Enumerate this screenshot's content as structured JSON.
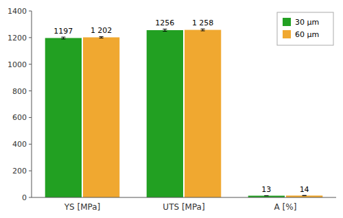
{
  "chart_data": {
    "type": "bar",
    "categories": [
      "YS [MPa]",
      "UTS [MPa]",
      "A [%]"
    ],
    "series": [
      {
        "name": "30 μm",
        "color": "#22a022",
        "values": [
          1197,
          1256,
          13
        ],
        "errors": [
          7,
          8,
          0.4
        ]
      },
      {
        "name": "60 μm",
        "color": "#f0a830",
        "values": [
          1202,
          1258,
          14
        ],
        "errors": [
          5,
          7,
          0.4
        ],
        "value_labels": [
          "1 202",
          "1 258",
          "14"
        ]
      }
    ],
    "ylim": [
      0,
      1400
    ],
    "yticks": [
      0,
      200,
      400,
      600,
      800,
      1000,
      1200,
      1400
    ],
    "data_labels": true,
    "legend": "upper-right",
    "grid": false
  }
}
